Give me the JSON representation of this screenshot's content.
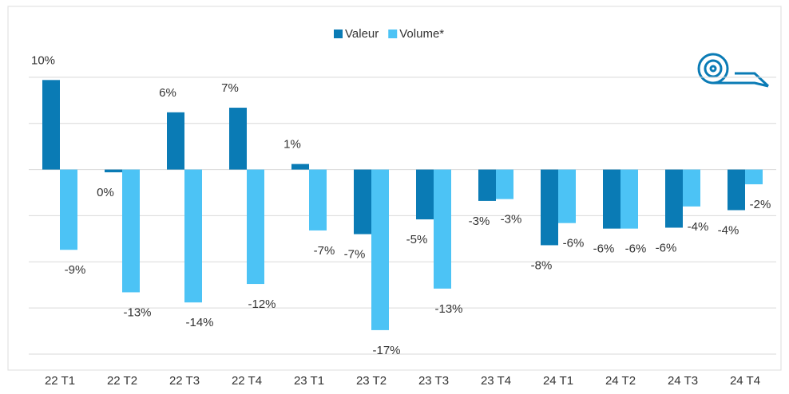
{
  "chart_data": {
    "type": "bar",
    "categories": [
      "22 T1",
      "22 T2",
      "22 T3",
      "22 T4",
      "23 T1",
      "23 T2",
      "23 T3",
      "23 T4",
      "24 T1",
      "24 T2",
      "24 T3",
      "24 T4"
    ],
    "series": [
      {
        "name": "Valeur",
        "color": "#0a7bb5",
        "values": [
          9.7,
          -0.3,
          6.2,
          6.7,
          0.6,
          -7.0,
          -5.4,
          -3.4,
          -8.2,
          -6.4,
          -6.3,
          -4.4
        ],
        "value_labels": [
          "10%",
          "0%",
          "6%",
          "7%",
          "1%",
          "-7%",
          "-5%",
          "-3%",
          "-8%",
          "-6%",
          "-6%",
          "-4%"
        ]
      },
      {
        "name": "Volume*",
        "color": "#4cc3f5",
        "values": [
          -8.7,
          -13.3,
          -14.4,
          -12.4,
          -6.6,
          -17.4,
          -12.9,
          -3.2,
          -5.8,
          -6.4,
          -4.0,
          -1.6
        ],
        "value_labels": [
          "-9%",
          "-13%",
          "-14%",
          "-12%",
          "-7%",
          "-17%",
          "-13%",
          "-3%",
          "-6%",
          "-6%",
          "-4%",
          "-2%"
        ]
      }
    ],
    "ylim": [
      -20,
      15
    ],
    "yticks": [
      -20,
      -15,
      -10,
      -5,
      0,
      5,
      10
    ],
    "grid": true,
    "legend": "top"
  }
}
